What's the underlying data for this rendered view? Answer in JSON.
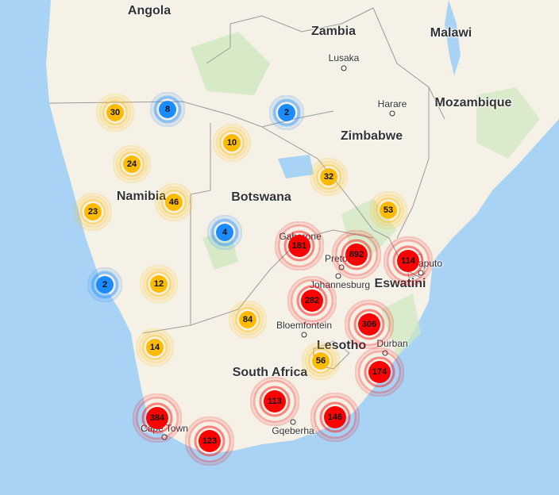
{
  "countries": [
    {
      "name": "Angola"
    },
    {
      "name": "Zambia"
    },
    {
      "name": "Malawi"
    },
    {
      "name": "Mozambique"
    },
    {
      "name": "Zimbabwe"
    },
    {
      "name": "Namibia"
    },
    {
      "name": "Botswana"
    },
    {
      "name": "South Africa"
    },
    {
      "name": "Lesotho"
    },
    {
      "name": "Eswatini"
    }
  ],
  "cities": [
    {
      "name": "Lusaka"
    },
    {
      "name": "Harare"
    },
    {
      "name": "Gaborone"
    },
    {
      "name": "Pretoria"
    },
    {
      "name": "Johannesburg"
    },
    {
      "name": "Maputo"
    },
    {
      "name": "Bloemfontein"
    },
    {
      "name": "Durban"
    },
    {
      "name": "Cape Town"
    },
    {
      "name": "Gqeberha"
    }
  ],
  "clusters": [
    {
      "count": "30",
      "level": "medium"
    },
    {
      "count": "8",
      "level": "small"
    },
    {
      "count": "2",
      "level": "small"
    },
    {
      "count": "10",
      "level": "medium"
    },
    {
      "count": "24",
      "level": "medium"
    },
    {
      "count": "32",
      "level": "medium"
    },
    {
      "count": "46",
      "level": "medium"
    },
    {
      "count": "23",
      "level": "medium"
    },
    {
      "count": "53",
      "level": "medium"
    },
    {
      "count": "4",
      "level": "small"
    },
    {
      "count": "181",
      "level": "large"
    },
    {
      "count": "892",
      "level": "large"
    },
    {
      "count": "114",
      "level": "large"
    },
    {
      "count": "2",
      "level": "small"
    },
    {
      "count": "12",
      "level": "medium"
    },
    {
      "count": "282",
      "level": "large"
    },
    {
      "count": "84",
      "level": "medium"
    },
    {
      "count": "306",
      "level": "large"
    },
    {
      "count": "14",
      "level": "medium"
    },
    {
      "count": "56",
      "level": "medium"
    },
    {
      "count": "174",
      "level": "large"
    },
    {
      "count": "113",
      "level": "large"
    },
    {
      "count": "146",
      "level": "large"
    },
    {
      "count": "384",
      "level": "large"
    },
    {
      "count": "123",
      "level": "large"
    }
  ],
  "colors": {
    "water": "#a9d3f5",
    "land": "#f5f1e6",
    "green": "#cfe8c0",
    "small": "#1a8cff",
    "medium": "#ffbb00",
    "large": "#ff0000"
  }
}
